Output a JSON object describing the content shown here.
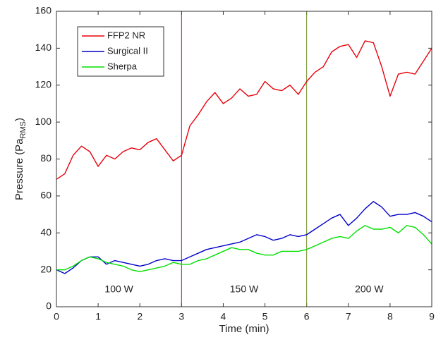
{
  "chart_data": {
    "type": "line",
    "xlabel": "Time (min)",
    "ylabel": "Pressure (Pa",
    "ylabel_sub": "RMS",
    "ylabel_end": ")",
    "xlim": [
      0,
      9
    ],
    "ylim": [
      0,
      160
    ],
    "xticks": [
      0,
      1,
      2,
      3,
      4,
      5,
      6,
      7,
      8,
      9
    ],
    "yticks": [
      0,
      20,
      40,
      60,
      80,
      100,
      120,
      140,
      160
    ],
    "grid": false,
    "legend": "upper left",
    "vlines": [
      {
        "x": 3,
        "color": "#8b1a8b"
      },
      {
        "x": 6,
        "color": "#6b8e23"
      }
    ],
    "annotations": [
      "100 W",
      "150 W",
      "200 W"
    ],
    "x": [
      0,
      0.2,
      0.4,
      0.6,
      0.8,
      1,
      1.2,
      1.4,
      1.6,
      1.8,
      2,
      2.2,
      2.4,
      2.6,
      2.8,
      3,
      3.2,
      3.4,
      3.6,
      3.8,
      4,
      4.2,
      4.4,
      4.6,
      4.8,
      5,
      5.2,
      5.4,
      5.6,
      5.8,
      6,
      6.2,
      6.4,
      6.6,
      6.8,
      7,
      7.2,
      7.4,
      7.6,
      7.8,
      8,
      8.2,
      8.4,
      8.6,
      8.8,
      9
    ],
    "series": [
      {
        "name": "FFP2 NR",
        "color": "#e8000b",
        "values": [
          69,
          72,
          82,
          87,
          84,
          76,
          82,
          80,
          84,
          86,
          85,
          89,
          91,
          85,
          79,
          82,
          98,
          104,
          111,
          116,
          110,
          113,
          118,
          114,
          115,
          122,
          118,
          117,
          120,
          115,
          122,
          127,
          130,
          138,
          141,
          142,
          135,
          144,
          143,
          130,
          114,
          126,
          127,
          126,
          133,
          140
        ]
      },
      {
        "name": "Surgical II",
        "color": "#0000cc",
        "values": [
          20,
          18,
          21,
          25,
          27,
          27,
          23,
          25,
          24,
          23,
          22,
          23,
          25,
          26,
          25,
          25,
          27,
          29,
          31,
          32,
          33,
          34,
          35,
          37,
          39,
          38,
          36,
          37,
          39,
          38,
          39,
          42,
          45,
          48,
          50,
          44,
          48,
          53,
          57,
          54,
          49,
          50,
          50,
          51,
          49,
          46
        ]
      },
      {
        "name": "Sherpa",
        "color": "#00e000",
        "values": [
          20,
          20,
          22,
          25,
          27,
          26,
          24,
          23,
          22,
          20,
          19,
          20,
          21,
          22,
          24,
          23,
          23,
          25,
          26,
          28,
          30,
          32,
          31,
          31,
          29,
          28,
          28,
          30,
          30,
          30,
          31,
          33,
          35,
          37,
          38,
          37,
          41,
          44,
          42,
          42,
          43,
          40,
          44,
          43,
          39,
          34
        ]
      }
    ]
  }
}
